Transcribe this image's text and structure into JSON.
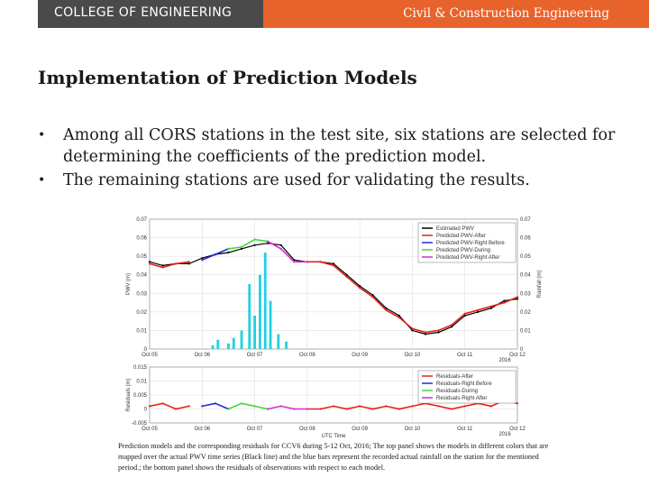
{
  "header": {
    "college": "COLLEGE OF ENGINEERING",
    "department": "Civil & Construction Engineering",
    "colors": {
      "college_bg": "#4a4a4a",
      "department_bg": "#e8632b"
    }
  },
  "title": "Implementation of Prediction Models",
  "bullets": [
    "Among all CORS stations in the test site, six stations are selected for determining the coefficients of the prediction model.",
    "The remaining stations are used for validating the results."
  ],
  "figure": {
    "caption": "Prediction models and the corresponding residuals for CCV6 during 5-12 Oct, 2016; The top panel shows the models in different colors that are mapped over the actual PWV time series (Black line) and the blue bars represent the recorded actual rainfall on the station for the mentioned period.; the bottom panel shows the residuals of observations with respect to each model.",
    "colors": {
      "estimated": "#000000",
      "after": "#e8201a",
      "right_before": "#1f2bd6",
      "during": "#3fd63a",
      "right_after": "#d62ad6",
      "rainfall": "#1fd1e0"
    }
  },
  "chart_data": [
    {
      "type": "line",
      "title": "",
      "xlabel": "",
      "ylabel": "PWV (m)",
      "y2label": "Rainfall (m)",
      "x_ticks": [
        "Oct 05",
        "Oct 06",
        "Oct 07",
        "Oct 08",
        "Oct 09",
        "Oct 10",
        "Oct 11",
        "Oct 12"
      ],
      "x_year_label": "2016",
      "ylim": [
        0,
        0.07
      ],
      "y_ticks": [
        "0",
        "0.01",
        "0.02",
        "0.03",
        "0.04",
        "0.05",
        "0.06",
        "0.07"
      ],
      "y2lim": [
        0,
        0.07
      ],
      "y2_ticks": [
        "0",
        "0.01",
        "0.02",
        "0.03",
        "0.04",
        "0.05",
        "0.06",
        "0.07"
      ],
      "legend": [
        "Estimated PWV",
        "Predicted PWV-After",
        "Predicted PWV-Right Before",
        "Predicted PWV-During",
        "Predicted PWV-Right After"
      ],
      "legend_position": "top-right",
      "x": [
        5.0,
        5.25,
        5.5,
        5.75,
        6.0,
        6.25,
        6.5,
        6.75,
        7.0,
        7.25,
        7.5,
        7.75,
        8.0,
        8.25,
        8.5,
        8.75,
        9.0,
        9.25,
        9.5,
        9.75,
        10.0,
        10.25,
        10.5,
        10.75,
        11.0,
        11.25,
        11.5,
        11.75,
        12.0
      ],
      "series": [
        {
          "name": "Estimated PWV",
          "values": [
            0.047,
            0.045,
            0.046,
            0.046,
            0.049,
            0.051,
            0.052,
            0.054,
            0.056,
            0.057,
            0.056,
            0.048,
            0.047,
            0.047,
            0.046,
            0.04,
            0.034,
            0.029,
            0.022,
            0.018,
            0.01,
            0.008,
            0.009,
            0.012,
            0.018,
            0.02,
            0.022,
            0.026,
            0.027
          ]
        },
        {
          "name": "Predicted PWV-After",
          "values": [
            0.046,
            0.044,
            0.046,
            0.047,
            null,
            null,
            null,
            null,
            null,
            null,
            null,
            null,
            0.047,
            0.047,
            0.045,
            0.039,
            0.033,
            0.028,
            0.021,
            0.017,
            0.011,
            0.009,
            0.01,
            0.013,
            0.019,
            0.021,
            0.023,
            0.025,
            0.028
          ]
        },
        {
          "name": "Predicted PWV-Right Before",
          "values": [
            null,
            null,
            null,
            null,
            0.048,
            0.051,
            0.054,
            null,
            null,
            null,
            null,
            null,
            null,
            null,
            null,
            null,
            null,
            null,
            null,
            null,
            null,
            null,
            null,
            null,
            null,
            null,
            null,
            null,
            null
          ]
        },
        {
          "name": "Predicted PWV-During",
          "values": [
            null,
            null,
            null,
            null,
            null,
            null,
            0.054,
            0.055,
            0.059,
            0.058,
            null,
            null,
            null,
            null,
            null,
            null,
            null,
            null,
            null,
            null,
            null,
            null,
            null,
            null,
            null,
            null,
            null,
            null,
            null
          ]
        },
        {
          "name": "Predicted PWV-Right After",
          "values": [
            null,
            null,
            null,
            null,
            null,
            null,
            null,
            null,
            null,
            0.058,
            0.054,
            0.047,
            0.047,
            null,
            null,
            null,
            null,
            null,
            null,
            null,
            null,
            null,
            null,
            null,
            null,
            null,
            null,
            null,
            null
          ]
        }
      ],
      "rainfall": {
        "x": [
          6.2,
          6.3,
          6.5,
          6.6,
          6.75,
          6.9,
          7.0,
          7.1,
          7.2,
          7.3,
          7.45,
          7.6
        ],
        "values": [
          0.002,
          0.005,
          0.003,
          0.006,
          0.01,
          0.035,
          0.018,
          0.04,
          0.052,
          0.026,
          0.008,
          0.004
        ]
      }
    },
    {
      "type": "line",
      "title": "",
      "xlabel": "UTC Time",
      "ylabel": "Residuals (m)",
      "x_ticks": [
        "Oct 05",
        "Oct 06",
        "Oct 07",
        "Oct 08",
        "Oct 09",
        "Oct 10",
        "Oct 11",
        "Oct 12"
      ],
      "x_year_label": "2016",
      "ylim": [
        -0.005,
        0.015
      ],
      "y_ticks": [
        "-0.005",
        "0",
        "0.005",
        "0.01",
        "0.015"
      ],
      "legend": [
        "Residuals-After",
        "Residuals-Right Before",
        "Residuals-During",
        "Residuals-Right After"
      ],
      "legend_position": "top-right",
      "x": [
        5.0,
        5.25,
        5.5,
        5.75,
        6.0,
        6.25,
        6.5,
        6.75,
        7.0,
        7.25,
        7.5,
        7.75,
        8.0,
        8.25,
        8.5,
        8.75,
        9.0,
        9.25,
        9.5,
        9.75,
        10.0,
        10.25,
        10.5,
        10.75,
        11.0,
        11.25,
        11.5,
        11.75,
        12.0
      ],
      "series": [
        {
          "name": "Residuals-After",
          "values": [
            0.001,
            0.002,
            0.0,
            0.001,
            null,
            null,
            null,
            null,
            null,
            null,
            null,
            null,
            0.0,
            0.0,
            0.001,
            0.0,
            0.001,
            0.0,
            0.001,
            0.0,
            0.001,
            0.002,
            0.001,
            0.0,
            0.001,
            0.002,
            0.001,
            0.003,
            0.002
          ]
        },
        {
          "name": "Residuals-Right Before",
          "values": [
            null,
            null,
            null,
            null,
            0.001,
            0.002,
            0.0,
            null,
            null,
            null,
            null,
            null,
            null,
            null,
            null,
            null,
            null,
            null,
            null,
            null,
            null,
            null,
            null,
            null,
            null,
            null,
            null,
            null,
            null
          ]
        },
        {
          "name": "Residuals-During",
          "values": [
            null,
            null,
            null,
            null,
            null,
            null,
            0.0,
            0.002,
            0.001,
            0.0,
            null,
            null,
            null,
            null,
            null,
            null,
            null,
            null,
            null,
            null,
            null,
            null,
            null,
            null,
            null,
            null,
            null,
            null,
            null
          ]
        },
        {
          "name": "Residuals-Right After",
          "values": [
            null,
            null,
            null,
            null,
            null,
            null,
            null,
            null,
            null,
            0.0,
            0.001,
            0.0,
            0.0,
            null,
            null,
            null,
            null,
            null,
            null,
            null,
            null,
            null,
            null,
            null,
            null,
            null,
            null,
            null,
            null
          ]
        }
      ]
    }
  ]
}
